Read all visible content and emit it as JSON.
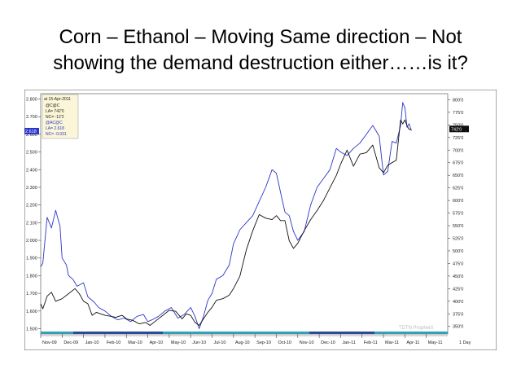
{
  "slide": {
    "title_line1": "Corn – Ethanol – Moving Same direction – Not",
    "title_line2": "showing the demand destruction either……is it?"
  },
  "chart_data": {
    "type": "line",
    "legend": {
      "date": "at 15-Apr-2011",
      "lines": [
        "@C@C",
        "LA= 742'0",
        "NC= -12'2",
        "@AC@C",
        "LA= 2.618",
        "NC= -0.031"
      ]
    },
    "watermark": "TDTN ProphetX",
    "left_axis": {
      "ticks": [
        "2.800",
        "2.700",
        "2.600",
        "2.500",
        "2.400",
        "2.300",
        "2.200",
        "2.100",
        "2.000",
        "1.900",
        "1.800",
        "1.700",
        "1.600",
        "1.500"
      ],
      "range": [
        1.47,
        2.83
      ],
      "last_value_badge": "2.618"
    },
    "right_axis": {
      "ticks": [
        "800'0",
        "775'0",
        "750'0",
        "725'0",
        "700'0",
        "675'0",
        "650'0",
        "625'0",
        "600'0",
        "575'0",
        "550'0",
        "525'0",
        "500'0",
        "475'0",
        "450'0",
        "425'0",
        "400'0",
        "375'0",
        "350'0"
      ],
      "range": [
        335,
        812
      ],
      "last_value_badge": "742'0"
    },
    "x_ticks": [
      "Nov-09",
      "Dec-09",
      "Jan-10",
      "Feb-10",
      "Mar-10",
      "Apr-10",
      "May-10",
      "Jun-10",
      "Jul-10",
      "Aug-10",
      "Sep-10",
      "Oct-10",
      "Nov-10",
      "Dec-10",
      "Jan-11",
      "Feb-11",
      "Mar-11",
      "Apr-11",
      "May-11"
    ],
    "period_label": "1 Day",
    "x_range_months": [
      0,
      19
    ],
    "series": [
      {
        "axis": "left",
        "color": "#2b35c8",
        "x": [
          0.0,
          0.1,
          0.3,
          0.5,
          0.7,
          0.9,
          1.0,
          1.2,
          1.3,
          1.5,
          1.7,
          2.0,
          2.2,
          2.5,
          2.7,
          3.0,
          3.3,
          3.6,
          3.9,
          4.2,
          4.5,
          4.8,
          5.0,
          5.2,
          5.5,
          5.8,
          6.1,
          6.4,
          6.7,
          7.0,
          7.2,
          7.4,
          7.6,
          7.8,
          8.0,
          8.2,
          8.5,
          8.8,
          9.0,
          9.3,
          9.6,
          9.9,
          10.2,
          10.5,
          10.8,
          11.0,
          11.2,
          11.4,
          11.6,
          11.8,
          12.0,
          12.3,
          12.6,
          12.9,
          13.2,
          13.5,
          13.8,
          14.0,
          14.3,
          14.6,
          14.9,
          15.2,
          15.5,
          15.8,
          16.0,
          16.2,
          16.4,
          16.6,
          16.8,
          16.9,
          17.0,
          17.1,
          17.2,
          17.3
        ],
        "y": [
          1.85,
          1.87,
          2.13,
          2.07,
          2.17,
          2.08,
          1.9,
          1.86,
          1.8,
          1.78,
          1.74,
          1.76,
          1.68,
          1.65,
          1.62,
          1.6,
          1.57,
          1.55,
          1.56,
          1.54,
          1.57,
          1.58,
          1.54,
          1.55,
          1.57,
          1.6,
          1.62,
          1.56,
          1.58,
          1.62,
          1.57,
          1.5,
          1.57,
          1.66,
          1.7,
          1.78,
          1.8,
          1.86,
          1.98,
          2.06,
          2.1,
          2.14,
          2.22,
          2.3,
          2.4,
          2.38,
          2.27,
          2.16,
          2.14,
          2.05,
          2.0,
          2.05,
          2.2,
          2.3,
          2.35,
          2.4,
          2.52,
          2.5,
          2.48,
          2.52,
          2.55,
          2.6,
          2.65,
          2.59,
          2.37,
          2.39,
          2.56,
          2.55,
          2.65,
          2.78,
          2.75,
          2.64,
          2.66,
          2.62
        ]
      },
      {
        "axis": "right",
        "color": "#111111",
        "x": [
          0.0,
          0.1,
          0.3,
          0.5,
          0.7,
          1.0,
          1.3,
          1.6,
          1.8,
          2.0,
          2.2,
          2.4,
          2.6,
          2.8,
          3.0,
          3.3,
          3.5,
          3.8,
          4.0,
          4.3,
          4.6,
          4.9,
          5.1,
          5.4,
          5.7,
          6.0,
          6.3,
          6.6,
          6.8,
          7.0,
          7.2,
          7.4,
          7.6,
          7.8,
          8.0,
          8.2,
          8.5,
          8.8,
          9.0,
          9.3,
          9.6,
          9.9,
          10.2,
          10.5,
          10.8,
          11.0,
          11.2,
          11.4,
          11.6,
          11.8,
          12.0,
          12.3,
          12.6,
          12.9,
          13.2,
          13.5,
          13.8,
          14.0,
          14.3,
          14.6,
          14.9,
          15.2,
          15.5,
          15.8,
          16.0,
          16.2,
          16.4,
          16.6,
          16.8,
          16.9,
          17.0,
          17.1,
          17.2,
          17.3
        ],
        "y": [
          395,
          385,
          410,
          418,
          400,
          405,
          415,
          425,
          415,
          400,
          395,
          372,
          378,
          375,
          372,
          370,
          368,
          372,
          365,
          362,
          355,
          358,
          352,
          362,
          372,
          382,
          380,
          365,
          375,
          372,
          358,
          352,
          365,
          378,
          388,
          402,
          405,
          412,
          425,
          450,
          502,
          540,
          572,
          565,
          562,
          570,
          560,
          560,
          520,
          505,
          515,
          540,
          562,
          580,
          600,
          625,
          650,
          672,
          700,
          668,
          692,
          695,
          710,
          665,
          655,
          670,
          675,
          680,
          760,
          752,
          760,
          748,
          741,
          742
        ]
      }
    ]
  }
}
